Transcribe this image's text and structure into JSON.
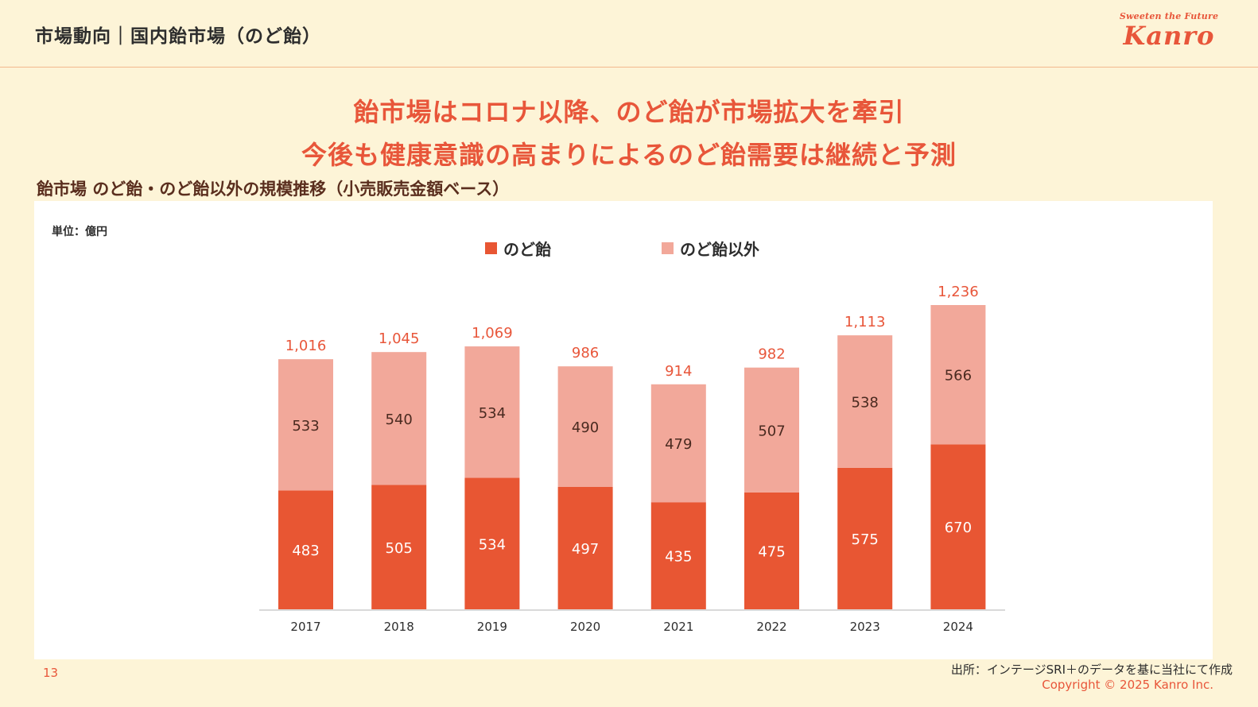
{
  "header": {
    "title": "市場動向｜国内飴市場（のど飴）",
    "logo_tagline": "Sweeten the Future",
    "logo_name": "Kanro"
  },
  "headline": {
    "line1": "飴市場はコロナ以降、のど飴が市場拡大を牽引",
    "line2": "今後も健康意識の高まりによるのど飴需要は継続と予測"
  },
  "footer": {
    "page_number": "13",
    "source": "出所：インテージSRI＋のデータを基に当社にて作成",
    "copyright": "Copyright © 2025  Kanro Inc."
  },
  "colors": {
    "accent": "#e8563a",
    "nodoame": "#e85633",
    "other": "#f2a89a",
    "background": "#fdf4d7"
  },
  "chart_data": {
    "type": "bar",
    "stacked": true,
    "title": "飴市場 のど飴・のど飴以外の規模推移（小売販売金額ベース）",
    "unit_label": "単位：億円",
    "xlabel": "",
    "ylabel": "",
    "categories": [
      "2017",
      "2018",
      "2019",
      "2020",
      "2021",
      "2022",
      "2023",
      "2024"
    ],
    "series": [
      {
        "name": "のど飴",
        "values": [
          483,
          505,
          534,
          497,
          435,
          475,
          575,
          670
        ]
      },
      {
        "name": "のど飴以外",
        "values": [
          533,
          540,
          534,
          490,
          479,
          507,
          538,
          566
        ]
      }
    ],
    "totals": [
      1016,
      1045,
      1069,
      986,
      914,
      982,
      1113,
      1236
    ],
    "total_labels": [
      "1,016",
      "1,045",
      "1,069",
      "986",
      "914",
      "982",
      "1,113",
      "1,236"
    ],
    "ylim": [
      0,
      1236
    ],
    "grid": false,
    "legend": "top-center"
  }
}
